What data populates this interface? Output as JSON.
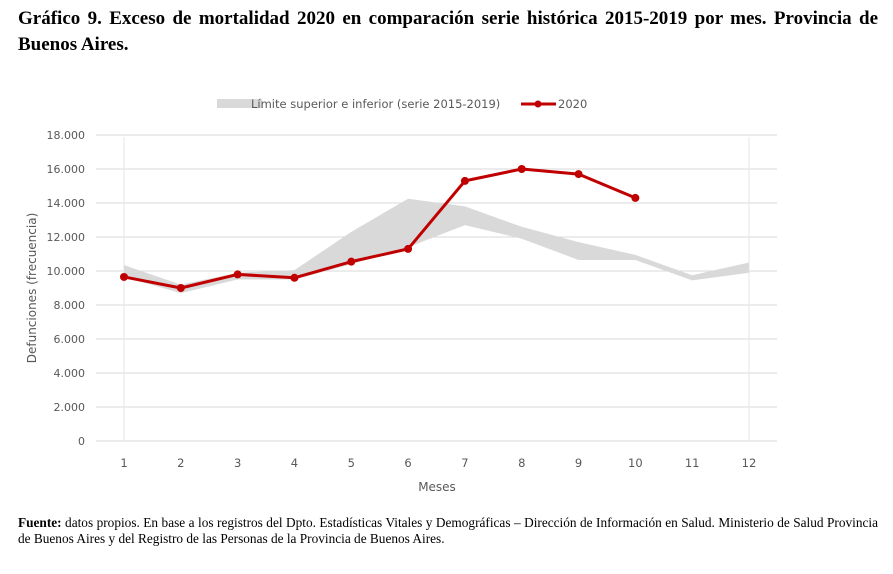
{
  "title": "Gráfico 9. Exceso de mortalidad 2020 en comparación serie histórica 2015-2019 por mes. Provincia de Buenos Aires.",
  "source": {
    "label": "Fuente:",
    "text": " datos propios. En base a los registros del Dpto. Estadísticas Vitales y Demográficas – Dirección de Información en Salud. Ministerio de Salud Provincia de Buenos Aires y del Registro de las Personas de la Provincia de Buenos Aires."
  },
  "chart_data": {
    "type": "line",
    "xlabel": "Meses",
    "ylabel": "Defunciones (frecuencia)",
    "ylim": [
      0,
      18000
    ],
    "yticks": [
      "0",
      "2.000",
      "4.000",
      "6.000",
      "8.000",
      "10.000",
      "12.000",
      "14.000",
      "16.000",
      "18.000"
    ],
    "categories": [
      "1",
      "2",
      "3",
      "4",
      "5",
      "6",
      "7",
      "8",
      "9",
      "10",
      "11",
      "12"
    ],
    "grid": true,
    "legend": "top",
    "band": {
      "name": "Límite superior e inferior (serie 2015-2019)",
      "color": "#d9d9d9",
      "upper": [
        10350,
        9200,
        9900,
        10050,
        12300,
        14250,
        13800,
        12600,
        11700,
        10950,
        9750,
        10500
      ],
      "lower": [
        9650,
        8700,
        9500,
        9500,
        10400,
        11400,
        12700,
        11900,
        10650,
        10650,
        9450,
        9900
      ]
    },
    "series": [
      {
        "name": "2020",
        "color": "#c00000",
        "values": [
          9650,
          9000,
          9800,
          9600,
          10550,
          11300,
          15300,
          16000,
          15700,
          14300,
          null,
          null
        ]
      }
    ]
  }
}
